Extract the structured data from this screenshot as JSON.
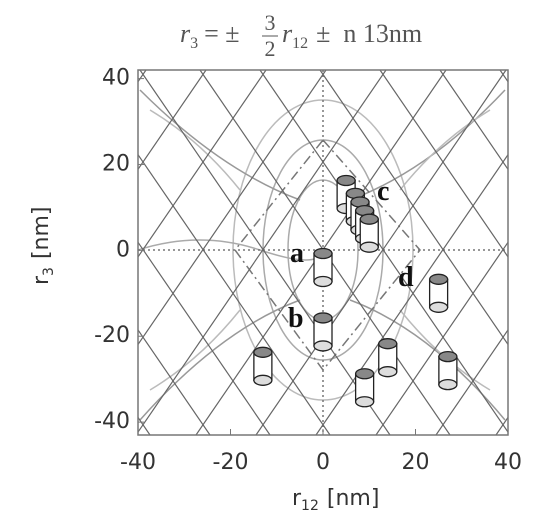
{
  "chart_data": {
    "type": "scatter",
    "title": {
      "lhs": "r",
      "lhs_sub": "3",
      "eq": "= ±",
      "num": "3",
      "den": "2",
      "r": "r",
      "r_sub": "12",
      "rest": "±  n 13nm"
    },
    "x_label": {
      "symbol": "r",
      "sub": "12",
      "unit": "[nm]"
    },
    "y_label": {
      "symbol": "r",
      "sub": "3",
      "unit": "[nm]"
    },
    "xlim": [
      -40,
      40
    ],
    "ylim": [
      -43,
      42
    ],
    "xticks": [
      -40,
      -20,
      0,
      20,
      40
    ],
    "yticks": [
      -40,
      -20,
      0,
      20,
      40
    ],
    "x": [
      0,
      0,
      5,
      7,
      8,
      9,
      10,
      25,
      -13,
      14,
      9,
      27
    ],
    "values": [
      -4,
      -19,
      13,
      10,
      8,
      6,
      4,
      -10,
      -27,
      -25,
      -32,
      -28
    ],
    "annotations": [
      "a",
      "b",
      "c",
      "d"
    ]
  }
}
